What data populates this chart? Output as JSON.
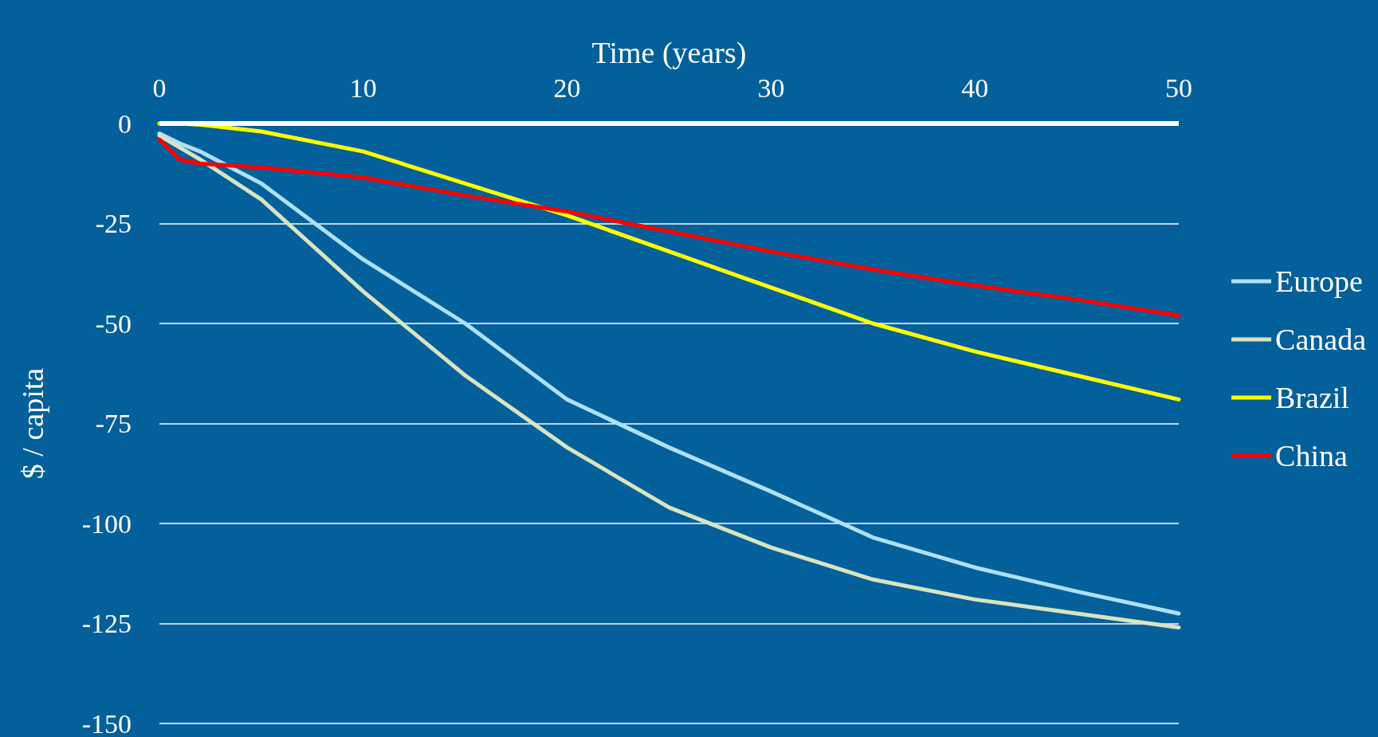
{
  "chart_data": {
    "type": "line",
    "xlabel": "Time (years)",
    "ylabel": "$ / capita",
    "xlim": [
      0,
      50
    ],
    "ylim": [
      -150,
      0
    ],
    "xticks": [
      0,
      10,
      20,
      30,
      40,
      50
    ],
    "yticks": [
      0,
      -25,
      -50,
      -75,
      -100,
      -125,
      -150
    ],
    "grid": "y",
    "legend": "right",
    "marker": "none",
    "line_style": "solid",
    "x": [
      0,
      1,
      2,
      5,
      10,
      15,
      20,
      25,
      30,
      35,
      40,
      45,
      50
    ],
    "series": [
      {
        "name": "Europe",
        "color": "#aee0f8",
        "values": [
          -2.5,
          -5,
          -7,
          -15,
          -34,
          -50,
          -69,
          -81,
          -92,
          -103.5,
          -111,
          -117,
          -122.5
        ]
      },
      {
        "name": "Canada",
        "color": "#d9e4c0",
        "values": [
          -3,
          -6,
          -9,
          -19,
          -42,
          -63,
          -81,
          -96,
          -106,
          -114,
          -119,
          -122.5,
          -126
        ]
      },
      {
        "name": "Brazil",
        "color": "#ffff00",
        "values": [
          0,
          0,
          -0.3,
          -2,
          -7,
          -15,
          -23,
          -32,
          -41,
          -50,
          -57,
          -63,
          -69
        ]
      },
      {
        "name": "China",
        "color": "#ff0000",
        "values": [
          -4,
          -9,
          -10,
          -11,
          -13.5,
          -18,
          -22,
          -27,
          -32,
          -36.5,
          -40.5,
          -44,
          -48
        ]
      }
    ]
  }
}
